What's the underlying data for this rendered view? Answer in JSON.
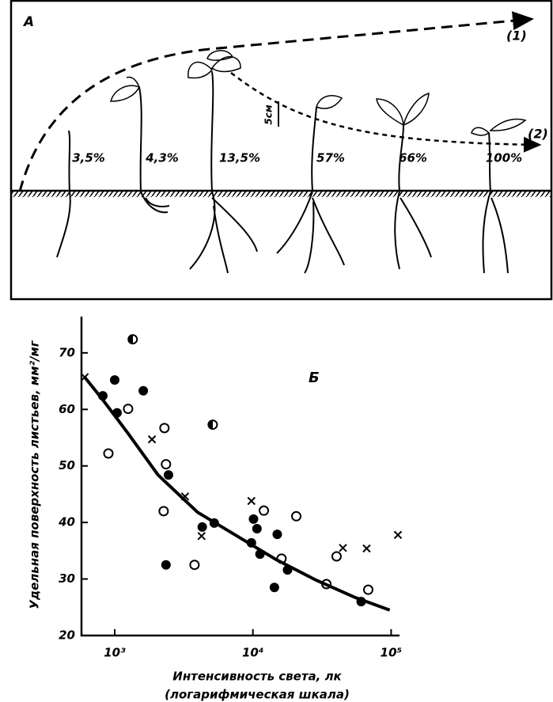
{
  "panel_a": {
    "label": "A",
    "curve_1": "(1)",
    "curve_2": "(2)",
    "scale": "5см",
    "plants": [
      "3,5%",
      "4,3%",
      "13,5%",
      "57%",
      "66%",
      "100%"
    ]
  },
  "chart_data": {
    "type": "scatter",
    "panel_label": "Б",
    "y_label": "Удельная поверхность листьев, мм²/мг",
    "x_label": "Интенсивность света, лк",
    "x_label_2": "(логарифмическая шкала)",
    "xscale": "log",
    "xlim": [
      575,
      115000
    ],
    "ylim": [
      20,
      76
    ],
    "xticks": [
      {
        "value": 1000,
        "label": "10³"
      },
      {
        "value": 10000,
        "label": "10⁴"
      },
      {
        "value": 100000,
        "label": "10⁵"
      }
    ],
    "yticks": [
      20,
      30,
      40,
      50,
      60,
      70
    ],
    "series": [
      {
        "marker": "filled-circle",
        "color": "#000000",
        "x": [
          820,
          1000,
          1040,
          1610,
          2450,
          2350,
          4300,
          5250,
          10100,
          9750,
          10700,
          11250,
          15000,
          14300,
          17800,
          60700
        ],
        "values": [
          62.4,
          65.2,
          59.4,
          63.3,
          48.4,
          32.5,
          39.2,
          39.9,
          40.6,
          36.4,
          38.9,
          34.4,
          37.9,
          28.5,
          31.6,
          26.0
        ]
      },
      {
        "marker": "open-circle",
        "color": "#000000",
        "x": [
          900,
          1250,
          2290,
          2350,
          2260,
          3780,
          12000,
          16100,
          20600,
          34000,
          40300,
          68300
        ],
        "values": [
          52.2,
          60.1,
          56.7,
          50.3,
          42.0,
          32.5,
          42.1,
          33.6,
          41.1,
          29.1,
          34.0,
          28.1
        ]
      },
      {
        "marker": "half-circle",
        "color": "#000000",
        "x": [
          1350,
          5120
        ],
        "values": [
          72.4,
          57.3
        ]
      },
      {
        "marker": "cross",
        "color": "#000000",
        "x": [
          607,
          1860,
          3230,
          4250,
          9750,
          44800,
          66500,
          112000
        ],
        "values": [
          65.7,
          54.7,
          44.6,
          37.6,
          43.8,
          35.5,
          35.4,
          37.8
        ]
      },
      {
        "marker": "line",
        "color": "#000000",
        "x": [
          607,
          820,
          1220,
          2060,
          3980,
          7680,
          14800,
          28600,
          55300,
          97700
        ],
        "values": [
          65.7,
          61.7,
          56.1,
          48.4,
          41.8,
          37.6,
          33.4,
          29.8,
          26.7,
          24.5
        ]
      }
    ]
  }
}
